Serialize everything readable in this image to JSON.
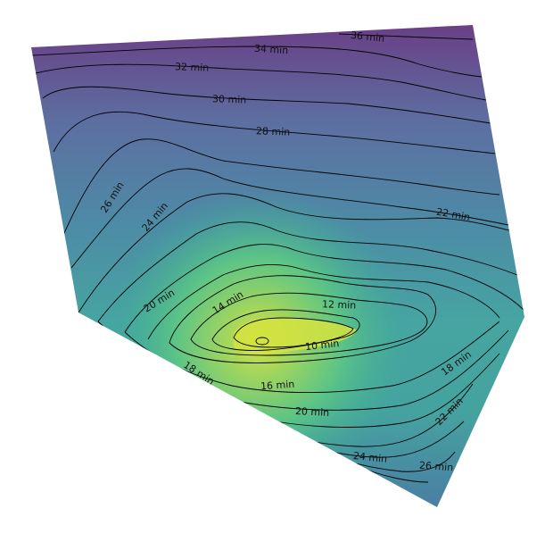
{
  "map": {
    "type": "isochrone-contour",
    "unit": "min",
    "color_low": "#d4e340",
    "color_high": "#6a3f86",
    "levels": [
      10,
      12,
      14,
      16,
      18,
      20,
      22,
      24,
      26,
      28,
      30,
      32,
      34,
      36
    ],
    "contour_labels": [
      "36 min",
      "34 min",
      "32 min",
      "30 min",
      "28 min",
      "26 min",
      "24 min",
      "22 min",
      "20 min",
      "14 min",
      "12 min",
      "10 min",
      "18 min",
      "16 min",
      "20 min",
      "18 min",
      "22 min",
      "24 min",
      "26 min"
    ]
  }
}
